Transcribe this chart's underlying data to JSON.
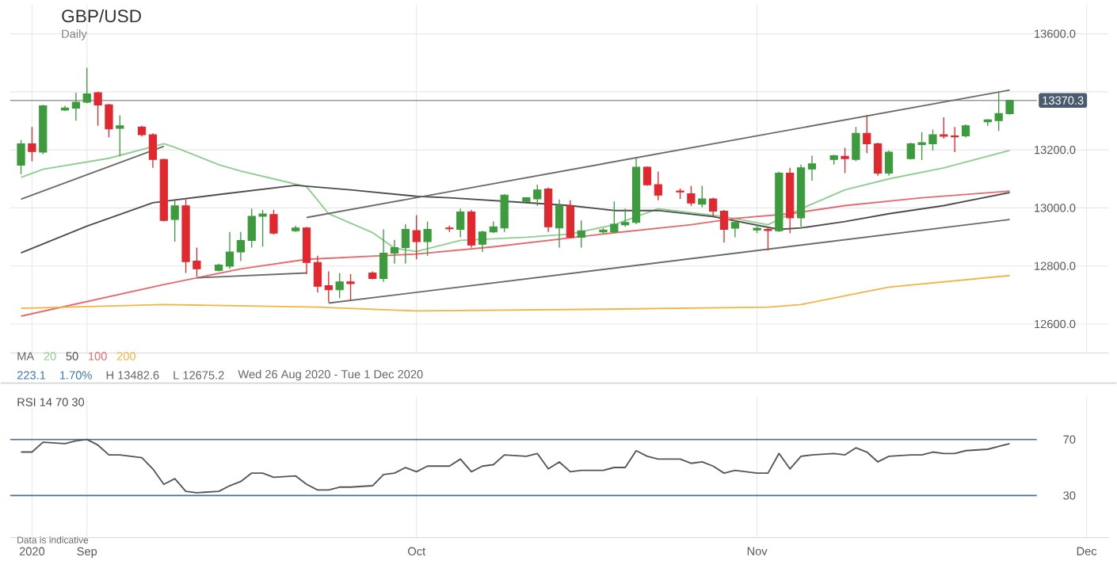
{
  "chart_data": [
    {
      "type": "candlestick",
      "title": "GBP/USD",
      "subtitle": "Daily",
      "x": [
        "2020-08-26",
        "2020-08-27",
        "2020-08-28",
        "2020-08-30",
        "2020-08-31",
        "2020-09-01",
        "2020-09-02",
        "2020-09-03",
        "2020-09-04",
        "2020-09-06",
        "2020-09-07",
        "2020-09-08",
        "2020-09-09",
        "2020-09-10",
        "2020-09-11",
        "2020-09-13",
        "2020-09-14",
        "2020-09-15",
        "2020-09-16",
        "2020-09-17",
        "2020-09-18",
        "2020-09-20",
        "2020-09-21",
        "2020-09-22",
        "2020-09-23",
        "2020-09-24",
        "2020-09-25",
        "2020-09-27",
        "2020-09-28",
        "2020-09-29",
        "2020-09-30",
        "2020-10-01",
        "2020-10-02",
        "2020-10-04",
        "2020-10-05",
        "2020-10-06",
        "2020-10-07",
        "2020-10-08",
        "2020-10-09",
        "2020-10-11",
        "2020-10-12",
        "2020-10-13",
        "2020-10-14",
        "2020-10-15",
        "2020-10-16",
        "2020-10-18",
        "2020-10-19",
        "2020-10-20",
        "2020-10-21",
        "2020-10-22",
        "2020-10-23",
        "2020-10-25",
        "2020-10-26",
        "2020-10-27",
        "2020-10-28",
        "2020-10-29",
        "2020-10-30",
        "2020-11-01",
        "2020-11-02",
        "2020-11-03",
        "2020-11-04",
        "2020-11-05",
        "2020-11-06",
        "2020-11-08",
        "2020-11-09",
        "2020-11-10",
        "2020-11-11",
        "2020-11-12",
        "2020-11-13",
        "2020-11-15",
        "2020-11-16",
        "2020-11-17",
        "2020-11-18",
        "2020-11-19",
        "2020-11-20",
        "2020-11-22",
        "2020-11-23",
        "2020-11-24"
      ],
      "ohlc": [
        [
          13147,
          13234,
          13116,
          13221
        ],
        [
          13221,
          13279,
          13161,
          13194
        ],
        [
          13192,
          13355,
          13185,
          13352
        ],
        [
          13337,
          13352,
          13334,
          13344
        ],
        [
          13344,
          13397,
          13301,
          13364
        ],
        [
          13364,
          13482.6,
          13361,
          13393
        ],
        [
          13397,
          13401,
          13283,
          13355
        ],
        [
          13355,
          13359,
          13243,
          13272
        ],
        [
          13274,
          13319,
          13178,
          13283
        ],
        [
          13279,
          13283,
          13247,
          13252
        ],
        [
          13252,
          13257,
          13138,
          13167
        ],
        [
          13167,
          13170,
          12953,
          12957
        ],
        [
          12960,
          13026,
          12884,
          13007
        ],
        [
          13007,
          13029,
          12776,
          12815
        ],
        [
          12817,
          12863,
          12763,
          12790
        ],
        [
          12785,
          12808,
          12781,
          12803
        ],
        [
          12799,
          12917,
          12790,
          12848
        ],
        [
          12848,
          12917,
          12817,
          12888
        ],
        [
          12888,
          12998,
          12863,
          12971
        ],
        [
          12971,
          12993,
          12866,
          12979
        ],
        [
          12977,
          12993,
          12908,
          12913
        ],
        [
          12921,
          12939,
          12917,
          12931
        ],
        [
          12931,
          12935,
          12772,
          12812
        ],
        [
          12812,
          12835,
          12709,
          12730
        ],
        [
          12732,
          12781,
          12675.2,
          12718
        ],
        [
          12718,
          12776,
          12690,
          12745
        ],
        [
          12745,
          12772,
          12681,
          12739
        ],
        [
          12776,
          12781,
          12754,
          12757
        ],
        [
          12757,
          12926,
          12745,
          12844
        ],
        [
          12844,
          12890,
          12808,
          12863
        ],
        [
          12863,
          12944,
          12808,
          12926
        ],
        [
          12922,
          12975,
          12823,
          12884
        ],
        [
          12884,
          12953,
          12835,
          12926
        ],
        [
          12931,
          12939,
          12917,
          12928
        ],
        [
          12926,
          12998,
          12899,
          12986
        ],
        [
          12986,
          12993,
          12863,
          12872
        ],
        [
          12875,
          12921,
          12848,
          12917
        ],
        [
          12917,
          12953,
          12913,
          12935
        ],
        [
          12931,
          13047,
          12917,
          13044
        ],
        [
          13022,
          13035,
          13022,
          13035
        ],
        [
          13031,
          13080,
          13007,
          13062
        ],
        [
          13065,
          13071,
          12917,
          12935
        ],
        [
          12931,
          13029,
          12863,
          13007
        ],
        [
          13007,
          13026,
          12895,
          12899
        ],
        [
          12899,
          12957,
          12863,
          12921
        ],
        [
          12917,
          12931,
          12908,
          12924
        ],
        [
          12917,
          13022,
          12913,
          12944
        ],
        [
          12942,
          12998,
          12935,
          12950
        ],
        [
          12950,
          13174,
          12944,
          13140
        ],
        [
          13140,
          13143,
          13076,
          13080
        ],
        [
          13080,
          13125,
          13026,
          13044
        ],
        [
          13058,
          13067,
          13031,
          13055
        ],
        [
          13049,
          13076,
          13007,
          13017
        ],
        [
          13013,
          13076,
          13002,
          13031
        ],
        [
          13031,
          13035,
          12971,
          12989
        ],
        [
          12989,
          12993,
          12881,
          12926
        ],
        [
          12930,
          12957,
          12899,
          12950
        ],
        [
          12924,
          12944,
          12913,
          12930
        ],
        [
          12926,
          12931,
          12853,
          12922
        ],
        [
          12921,
          13125,
          12917,
          13120
        ],
        [
          13120,
          13138,
          12913,
          12966
        ],
        [
          12966,
          13149,
          12935,
          13138
        ],
        [
          13134,
          13180,
          13094,
          13152
        ],
        [
          13167,
          13183,
          13149,
          13180
        ],
        [
          13178,
          13207,
          13120,
          13170
        ],
        [
          13167,
          13279,
          13161,
          13257
        ],
        [
          13257,
          13319,
          13189,
          13221
        ],
        [
          13221,
          13225,
          13111,
          13120
        ],
        [
          13120,
          13198,
          13111,
          13192
        ],
        [
          13170,
          13225,
          13167,
          13221
        ],
        [
          13218,
          13261,
          13165,
          13225
        ],
        [
          13221,
          13270,
          13198,
          13252
        ],
        [
          13252,
          13312,
          13239,
          13247
        ],
        [
          13248,
          13279,
          13192,
          13245
        ],
        [
          13248,
          13288,
          13243,
          13283
        ],
        [
          13297,
          13306,
          13283,
          13303
        ],
        [
          13301,
          13401,
          13265,
          13325
        ],
        [
          13325,
          13373,
          13321,
          13370.3
        ]
      ],
      "series": [
        {
          "type": "line",
          "name": "20",
          "color": "#8fce8f",
          "x": [
            "2020-08-26",
            "2020-08-28",
            "2020-09-03",
            "2020-09-08",
            "2020-09-09",
            "2020-09-13",
            "2020-09-15",
            "2020-09-18",
            "2020-09-21",
            "2020-09-23",
            "2020-09-27",
            "2020-09-29",
            "2020-10-01",
            "2020-10-05",
            "2020-10-11",
            "2020-10-15",
            "2020-10-19",
            "2020-10-23",
            "2020-10-29",
            "2020-11-02",
            "2020-11-05",
            "2020-11-09",
            "2020-11-13",
            "2020-11-18",
            "2020-11-24"
          ],
          "values": [
            13105,
            13133,
            13171,
            13221,
            13209,
            13149,
            13127,
            13100,
            13073,
            12980,
            12915,
            12861,
            12850,
            12888,
            12899,
            12910,
            12942,
            12997,
            12970,
            12942,
            12997,
            13062,
            13100,
            13138,
            13198
          ]
        },
        {
          "type": "line",
          "name": "50",
          "color": "#4d4d4d",
          "x": [
            "2020-08-26",
            "2020-09-01",
            "2020-09-07",
            "2020-09-13",
            "2020-09-20",
            "2020-09-25",
            "2020-10-01",
            "2020-10-04",
            "2020-10-11",
            "2020-10-15",
            "2020-10-19",
            "2020-10-23",
            "2020-10-28",
            "2020-11-03",
            "2020-11-05",
            "2020-11-09",
            "2020-11-13",
            "2020-11-18",
            "2020-11-24"
          ],
          "values": [
            12845,
            12937,
            13018,
            13046,
            13078,
            13062,
            13040,
            13035,
            13018,
            13008,
            12991,
            12991,
            12970,
            12926,
            12931,
            12953,
            12980,
            13008,
            13053
          ]
        },
        {
          "type": "line",
          "name": "100",
          "color": "#e8696b",
          "x": [
            "2020-08-26",
            "2020-09-08",
            "2020-09-15",
            "2020-09-21",
            "2020-10-01",
            "2020-10-08",
            "2020-10-18",
            "2020-10-26",
            "2020-10-30",
            "2020-11-04",
            "2020-11-09",
            "2020-11-16",
            "2020-11-24"
          ],
          "values": [
            12627,
            12736,
            12790,
            12823,
            12841,
            12866,
            12910,
            12942,
            12964,
            12980,
            13008,
            13035,
            13058
          ]
        },
        {
          "type": "line",
          "name": "200",
          "color": "#f5b342",
          "x": [
            "2020-08-26",
            "2020-09-08",
            "2020-09-22",
            "2020-10-01",
            "2020-10-18",
            "2020-11-02",
            "2020-11-05",
            "2020-11-13",
            "2020-11-24"
          ],
          "values": [
            12654,
            12667,
            12658,
            12645,
            12651,
            12658,
            12667,
            12727,
            12767
          ]
        },
        {
          "type": "line",
          "color": "#6b6b6b",
          "x": [
            "2020-08-26",
            "2020-09-08"
          ],
          "values": [
            13030,
            13212
          ]
        },
        {
          "type": "line",
          "color": "#6b6b6b",
          "x": [
            "2020-09-11",
            "2020-09-21"
          ],
          "values": [
            12759,
            12776
          ]
        },
        {
          "type": "line",
          "color": "#6b6b6b",
          "x": [
            "2020-09-21",
            "2020-11-24"
          ],
          "values": [
            12967,
            13406
          ]
        },
        {
          "type": "line",
          "color": "#6b6b6b",
          "x": [
            "2020-09-23",
            "2020-11-24"
          ],
          "values": [
            12672,
            12960
          ]
        }
      ],
      "legend": "bottom left",
      "legend_title": "MA",
      "annotations": [
        "223.1",
        "1.70%",
        "H 13482.6",
        "L 12675.2",
        "Wed 26 Aug 2020 - Tue 1 Dec 2020"
      ],
      "xlim": [
        "2020-08-25",
        "2020-12-03"
      ],
      "ylim": [
        12500,
        13700
      ],
      "xticks": [
        {
          "value": "2020-08-27",
          "label": null
        },
        {
          "value": "2020-09-01",
          "label": null
        },
        {
          "value": "2020-10-01",
          "label": null
        },
        {
          "value": "2020-11-01",
          "label": null
        },
        {
          "value": "2020-12-01",
          "label": null
        }
      ],
      "yticks": [
        {
          "value": 12600,
          "label": "12600.0"
        },
        {
          "value": 12800,
          "label": "12800.0"
        },
        {
          "value": 13000,
          "label": "13000.0"
        },
        {
          "value": 13200,
          "label": "13200.0"
        },
        {
          "value": 13400,
          "label": null
        },
        {
          "value": 13600,
          "label": "13600.0"
        }
      ],
      "grid": true,
      "tick_labels": "y",
      "ref_lines": [
        {
          "axis": "y",
          "value": 13370.3,
          "label": "13370.3",
          "color": "#9a9a9a"
        }
      ]
    },
    {
      "type": "line",
      "title": "RSI 14 70 30",
      "x": [
        "2020-08-26",
        "2020-08-27",
        "2020-08-28",
        "2020-08-30",
        "2020-08-31",
        "2020-09-01",
        "2020-09-02",
        "2020-09-03",
        "2020-09-04",
        "2020-09-06",
        "2020-09-07",
        "2020-09-08",
        "2020-09-09",
        "2020-09-10",
        "2020-09-11",
        "2020-09-13",
        "2020-09-14",
        "2020-09-15",
        "2020-09-16",
        "2020-09-17",
        "2020-09-18",
        "2020-09-20",
        "2020-09-21",
        "2020-09-22",
        "2020-09-23",
        "2020-09-24",
        "2020-09-25",
        "2020-09-27",
        "2020-09-28",
        "2020-09-29",
        "2020-09-30",
        "2020-10-01",
        "2020-10-02",
        "2020-10-04",
        "2020-10-05",
        "2020-10-06",
        "2020-10-07",
        "2020-10-08",
        "2020-10-09",
        "2020-10-11",
        "2020-10-12",
        "2020-10-13",
        "2020-10-14",
        "2020-10-15",
        "2020-10-16",
        "2020-10-18",
        "2020-10-19",
        "2020-10-20",
        "2020-10-21",
        "2020-10-22",
        "2020-10-23",
        "2020-10-25",
        "2020-10-26",
        "2020-10-27",
        "2020-10-28",
        "2020-10-29",
        "2020-10-30",
        "2020-11-01",
        "2020-11-02",
        "2020-11-03",
        "2020-11-04",
        "2020-11-05",
        "2020-11-06",
        "2020-11-08",
        "2020-11-09",
        "2020-11-10",
        "2020-11-11",
        "2020-11-12",
        "2020-11-13",
        "2020-11-15",
        "2020-11-16",
        "2020-11-17",
        "2020-11-18",
        "2020-11-19",
        "2020-11-20",
        "2020-11-22",
        "2020-11-23",
        "2020-11-24"
      ],
      "series": [
        {
          "color": "#555555",
          "values": [
            61,
            61,
            68,
            67,
            69,
            70,
            66,
            59,
            59,
            57,
            49,
            38,
            42,
            33,
            32,
            33,
            37,
            40,
            46,
            46,
            43,
            44,
            38,
            34,
            34,
            36,
            36,
            37,
            45,
            46,
            50,
            47,
            51,
            51,
            56,
            47,
            51,
            52,
            59,
            58,
            60,
            49,
            54,
            47,
            48,
            48,
            50,
            50,
            62,
            58,
            56,
            56,
            53,
            54,
            51,
            46,
            48,
            46,
            46,
            60,
            49,
            58,
            59,
            60,
            59,
            64,
            61,
            54,
            58,
            59,
            59,
            61,
            60,
            60,
            62,
            63,
            65,
            67
          ]
        }
      ],
      "annotations": [
        "Data is indicative"
      ],
      "xlim": [
        "2020-08-25",
        "2020-12-03"
      ],
      "ylim": [
        0,
        100
      ],
      "xticks": [
        {
          "value": "2020-08-27",
          "label": "2020"
        },
        {
          "value": "2020-09-01",
          "label": "Sep"
        },
        {
          "value": "2020-10-01",
          "label": "Oct"
        },
        {
          "value": "2020-11-01",
          "label": "Nov"
        },
        {
          "value": "2020-12-01",
          "label": "Dec"
        }
      ],
      "yticks": [
        30,
        70
      ],
      "grid": "x",
      "ref_lines": [
        {
          "axis": "y",
          "value": 70,
          "color": "#4f6f96"
        },
        {
          "axis": "y",
          "value": 30,
          "color": "#4f6f96"
        }
      ]
    }
  ]
}
